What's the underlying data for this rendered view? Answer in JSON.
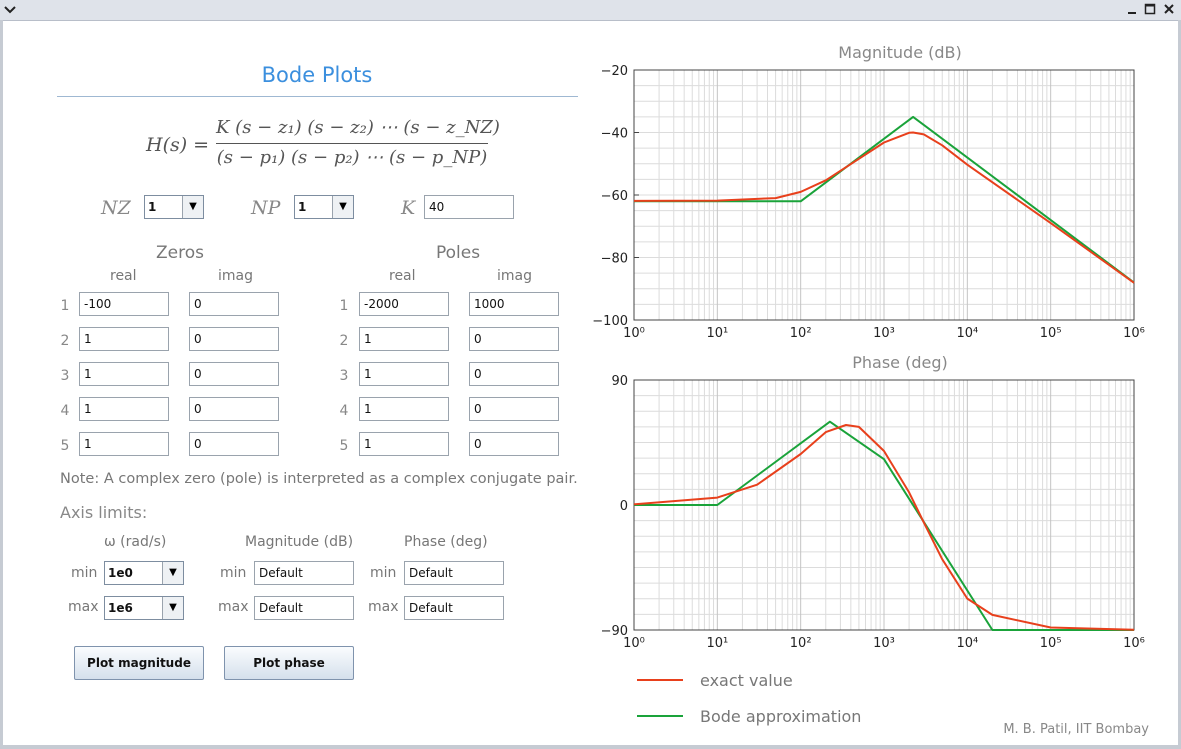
{
  "window": {
    "menu_icon": "chevron-down-icon",
    "minimize_icon": "minimize-icon",
    "maximize_icon": "maximize-icon",
    "close_icon": "close-icon"
  },
  "app_title": "Bode Plots",
  "formula": {
    "lhs": "H(s) =",
    "numerator": "K (s − z₁) (s − z₂) ⋯ (s − z_NZ)",
    "denominator": "(s − p₁) (s − p₂) ⋯ (s − p_NP)"
  },
  "params": {
    "nz_label": "NZ",
    "nz_value": "1",
    "np_label": "NP",
    "np_value": "1",
    "k_label": "K",
    "k_value": "40"
  },
  "zeros": {
    "title": "Zeros",
    "real_label": "real",
    "imag_label": "imag",
    "rows": [
      {
        "n": "1",
        "real": "-100",
        "imag": "0"
      },
      {
        "n": "2",
        "real": "1",
        "imag": "0"
      },
      {
        "n": "3",
        "real": "1",
        "imag": "0"
      },
      {
        "n": "4",
        "real": "1",
        "imag": "0"
      },
      {
        "n": "5",
        "real": "1",
        "imag": "0"
      }
    ]
  },
  "poles": {
    "title": "Poles",
    "real_label": "real",
    "imag_label": "imag",
    "rows": [
      {
        "n": "1",
        "real": "-2000",
        "imag": "1000"
      },
      {
        "n": "2",
        "real": "1",
        "imag": "0"
      },
      {
        "n": "3",
        "real": "1",
        "imag": "0"
      },
      {
        "n": "4",
        "real": "1",
        "imag": "0"
      },
      {
        "n": "5",
        "real": "1",
        "imag": "0"
      }
    ]
  },
  "note": "Note: A complex zero (pole) is interpreted as a complex conjugate pair.",
  "axis_limits": {
    "title": "Axis limits:",
    "omega_label": "ω (rad/s)",
    "mag_label": "Magnitude (dB)",
    "phase_label": "Phase (deg)",
    "min_label": "min",
    "max_label": "max",
    "omega_min": "1e0",
    "omega_max": "1e6",
    "mag_min": "Default",
    "mag_max": "Default",
    "phase_min": "Default",
    "phase_max": "Default"
  },
  "buttons": {
    "plot_magnitude": "Plot magnitude",
    "plot_phase": "Plot phase"
  },
  "credit": "M. B. Patil, IIT Bombay",
  "colors": {
    "exact": "#e8401c",
    "bode": "#1aa33a",
    "grid": "#dcdcdc",
    "title_blue": "#3b8fde"
  },
  "chart_data": [
    {
      "type": "line",
      "title": "Magnitude (dB)",
      "x_scale": "log",
      "xlim": [
        1,
        1000000
      ],
      "ylim": [
        -100,
        -20
      ],
      "x_ticks": [
        "10⁰",
        "10¹",
        "10²",
        "10³",
        "10⁴",
        "10⁵",
        "10⁶"
      ],
      "y_ticks": [
        "−20",
        "−40",
        "−60",
        "−80",
        "−100"
      ],
      "grid": true,
      "series": [
        {
          "name": "exact value",
          "x": [
            1,
            10,
            50,
            100,
            200,
            500,
            1000,
            2000,
            2236,
            3000,
            5000,
            10000,
            100000,
            1000000
          ],
          "y": [
            -61.9,
            -61.8,
            -61.0,
            -59.0,
            -55.3,
            -48.4,
            -43.2,
            -40.1,
            -40.0,
            -40.6,
            -44.1,
            -50.3,
            -69.0,
            -88.1
          ]
        },
        {
          "name": "Bode approximation",
          "x": [
            1,
            100,
            2236,
            1000000
          ],
          "y": [
            -62,
            -62,
            -35,
            -88
          ]
        }
      ]
    },
    {
      "type": "line",
      "title": "Phase (deg)",
      "x_scale": "log",
      "xlim": [
        1,
        1000000
      ],
      "ylim": [
        -90,
        90
      ],
      "x_ticks": [
        "10⁰",
        "10¹",
        "10²",
        "10³",
        "10⁴",
        "10⁵",
        "10⁶"
      ],
      "y_ticks": [
        "90",
        "0",
        "−90"
      ],
      "grid": true,
      "series": [
        {
          "name": "exact value",
          "x": [
            1,
            10,
            30,
            100,
            200,
            350,
            500,
            1000,
            2000,
            3000,
            5000,
            10000,
            20000,
            100000,
            1000000
          ],
          "y": [
            0.5,
            5.3,
            14.6,
            36.7,
            52.5,
            57.6,
            56.2,
            38.9,
            9.1,
            -12.5,
            -39.0,
            -67.4,
            -79.1,
            -88.2,
            -89.8
          ]
        },
        {
          "name": "Bode approximation",
          "x": [
            1,
            10,
            224,
            1000,
            20000,
            1000000
          ],
          "y": [
            0,
            0,
            60,
            33,
            -90,
            -90
          ]
        }
      ]
    }
  ],
  "legend": [
    {
      "name": "exact value",
      "color": "#e8401c"
    },
    {
      "name": "Bode approximation",
      "color": "#1aa33a"
    }
  ]
}
